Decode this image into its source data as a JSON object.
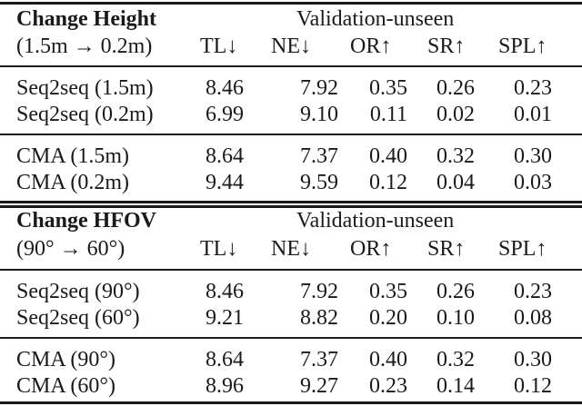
{
  "tables": [
    {
      "title": "Change Height",
      "subtitle": "(1.5m → 0.2m)",
      "split_label": "Validation-unseen",
      "columns": [
        "TL↓",
        "NE↓",
        "OR↑",
        "SR↑",
        "SPL↑"
      ],
      "groups": [
        [
          {
            "label": "Seq2seq (1.5m)",
            "values": [
              "8.46",
              "7.92",
              "0.35",
              "0.26",
              "0.23"
            ]
          },
          {
            "label": "Seq2seq (0.2m)",
            "values": [
              "6.99",
              "9.10",
              "0.11",
              "0.02",
              "0.01"
            ]
          }
        ],
        [
          {
            "label": "CMA (1.5m)",
            "values": [
              "8.64",
              "7.37",
              "0.40",
              "0.32",
              "0.30"
            ]
          },
          {
            "label": "CMA (0.2m)",
            "values": [
              "9.44",
              "9.59",
              "0.12",
              "0.04",
              "0.03"
            ]
          }
        ]
      ]
    },
    {
      "title": "Change HFOV",
      "subtitle": "(90° → 60°)",
      "split_label": "Validation-unseen",
      "columns": [
        "TL↓",
        "NE↓",
        "OR↑",
        "SR↑",
        "SPL↑"
      ],
      "groups": [
        [
          {
            "label": "Seq2seq (90°)",
            "values": [
              "8.46",
              "7.92",
              "0.35",
              "0.26",
              "0.23"
            ]
          },
          {
            "label": "Seq2seq (60°)",
            "values": [
              "9.21",
              "8.82",
              "0.20",
              "0.10",
              "0.08"
            ]
          }
        ],
        [
          {
            "label": "CMA (90°)",
            "values": [
              "8.64",
              "7.37",
              "0.40",
              "0.32",
              "0.30"
            ]
          },
          {
            "label": "CMA (60°)",
            "values": [
              "8.96",
              "9.27",
              "0.23",
              "0.14",
              "0.12"
            ]
          }
        ]
      ]
    }
  ]
}
